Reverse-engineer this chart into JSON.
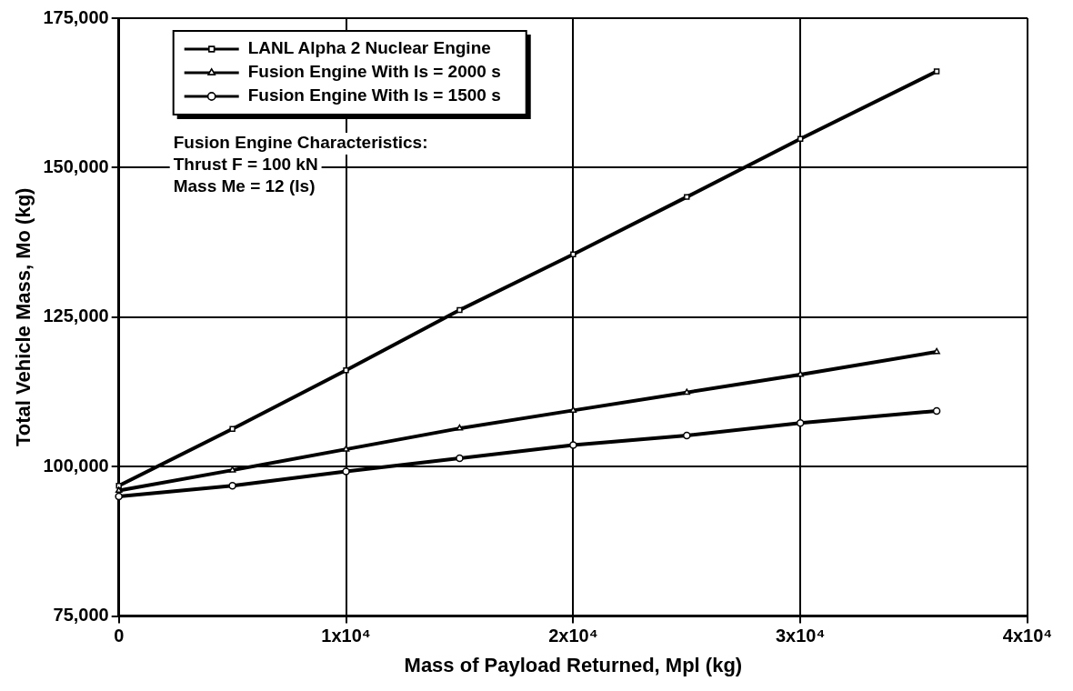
{
  "chart_data": {
    "type": "line",
    "xlabel": "Mass of Payload Returned, Mpl (kg)",
    "ylabel": "Total Vehicle Mass, Mo (kg)",
    "x": [
      0,
      5000,
      10000,
      15000,
      20000,
      25000,
      30000,
      36000
    ],
    "series": [
      {
        "name": "LANL Alpha 2 Nuclear Engine",
        "color": "#000000",
        "marker": "square",
        "values": [
          96800,
          106300,
          116100,
          126200,
          135500,
          145100,
          154800,
          166100
        ]
      },
      {
        "name": "Fusion Engine With Is = 2000 s",
        "color": "#000000",
        "marker": "triangle",
        "values": [
          96000,
          99400,
          102900,
          106400,
          109400,
          112400,
          115400,
          119200
        ]
      },
      {
        "name": "Fusion Engine With Is = 1500 s",
        "color": "#000000",
        "marker": "circle",
        "values": [
          95000,
          96800,
          99200,
          101400,
          103600,
          105200,
          107300,
          109300
        ]
      }
    ],
    "xlim": [
      0,
      40000
    ],
    "xticks": [
      0,
      {
        "value": 10000,
        "label": "1x10⁴"
      },
      {
        "value": 20000,
        "label": "2x10⁴"
      },
      {
        "value": 30000,
        "label": "3x10⁴"
      },
      {
        "value": 40000,
        "label": "4x10⁴"
      }
    ],
    "ylim": [
      75000,
      175000
    ],
    "yticks": [
      {
        "value": 75000,
        "label": "75,000"
      },
      {
        "value": 100000,
        "label": "100,000"
      },
      {
        "value": 125000,
        "label": "125,000"
      },
      {
        "value": 150000,
        "label": "150,000"
      },
      {
        "value": 175000,
        "label": "175,000"
      }
    ],
    "grid": true,
    "legend": "top left",
    "line_style": "solid",
    "annotations": [
      "Fusion Engine Characteristics:",
      "Thrust F = 100 kN",
      "Mass Me = 12 (Is)"
    ]
  }
}
